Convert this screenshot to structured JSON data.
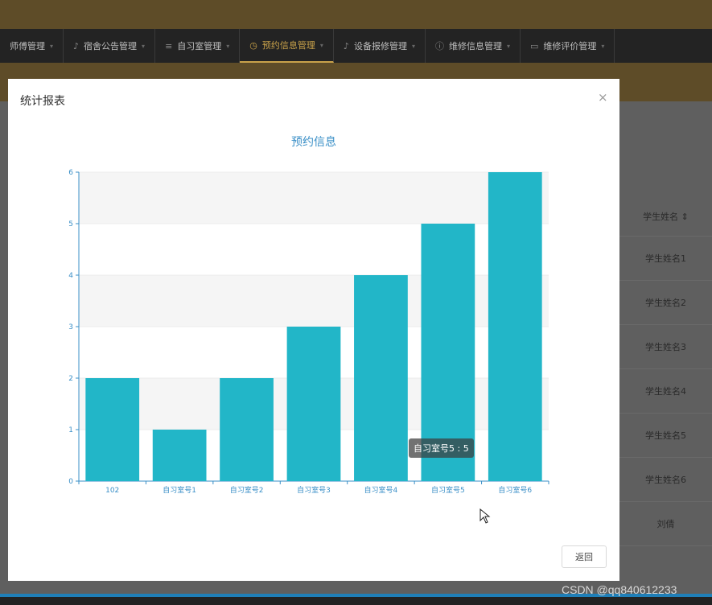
{
  "nav": {
    "items": [
      {
        "label": "师傅管理",
        "icon": "user-icon",
        "active": false
      },
      {
        "label": "宿舍公告管理",
        "icon": "mic-icon",
        "active": false
      },
      {
        "label": "自习室管理",
        "icon": "list-icon",
        "active": false
      },
      {
        "label": "预约信息管理",
        "icon": "clock-icon",
        "active": true
      },
      {
        "label": "设备报修管理",
        "icon": "mic-icon",
        "active": false
      },
      {
        "label": "维修信息管理",
        "icon": "info-circle-icon",
        "active": false
      },
      {
        "label": "维修评价管理",
        "icon": "comment-icon",
        "active": false
      }
    ]
  },
  "background_table": {
    "header": "学生姓名 ⇕",
    "rows": [
      "学生姓名1",
      "学生姓名2",
      "学生姓名3",
      "学生姓名4",
      "学生姓名5",
      "学生姓名6",
      "刘倩"
    ]
  },
  "modal": {
    "title": "统计报表",
    "close_label": "×",
    "return_label": "返回"
  },
  "tooltip": {
    "text": "自习室号5 : 5"
  },
  "watermark": "CSDN @qq840612233",
  "colors": {
    "bar": "#22b6c8",
    "title": "#3a8fc7",
    "axis": "#3a8fc7",
    "band": "#f5f5f5",
    "active_nav": "#c9a24a"
  },
  "chart_data": {
    "type": "bar",
    "title": "预约信息",
    "categories": [
      "102",
      "自习室号1",
      "自习室号2",
      "自习室号3",
      "自习室号4",
      "自习室号5",
      "自习室号6"
    ],
    "values": [
      2,
      1,
      2,
      3,
      4,
      5,
      6
    ],
    "ylim": [
      0,
      6
    ],
    "yticks": [
      0,
      1,
      2,
      3,
      4,
      5,
      6
    ],
    "xlabel": "",
    "ylabel": "",
    "grid": true
  }
}
